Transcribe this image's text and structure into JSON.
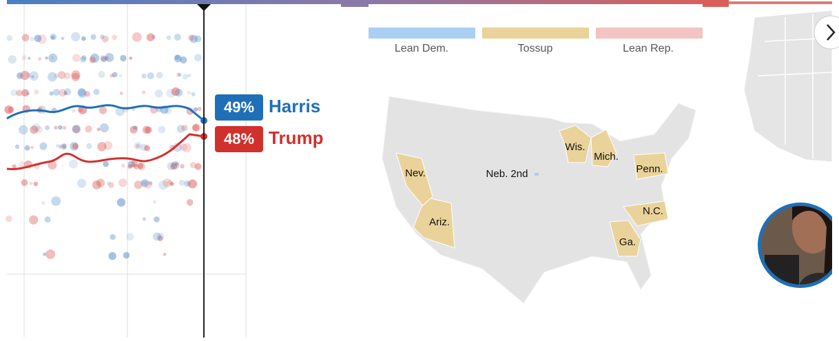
{
  "polls_panel": {
    "harris": {
      "pct": "49%",
      "name": "Harris"
    },
    "trump": {
      "pct": "48%",
      "name": "Trump"
    }
  },
  "map_panel": {
    "legend": [
      "Lean Dem.",
      "Tossup",
      "Lean Rep."
    ],
    "states": [
      "Nev.",
      "Ariz.",
      "Neb. 2nd",
      "Wis.",
      "Mich.",
      "Penn.",
      "N.C.",
      "Ga."
    ]
  }
}
